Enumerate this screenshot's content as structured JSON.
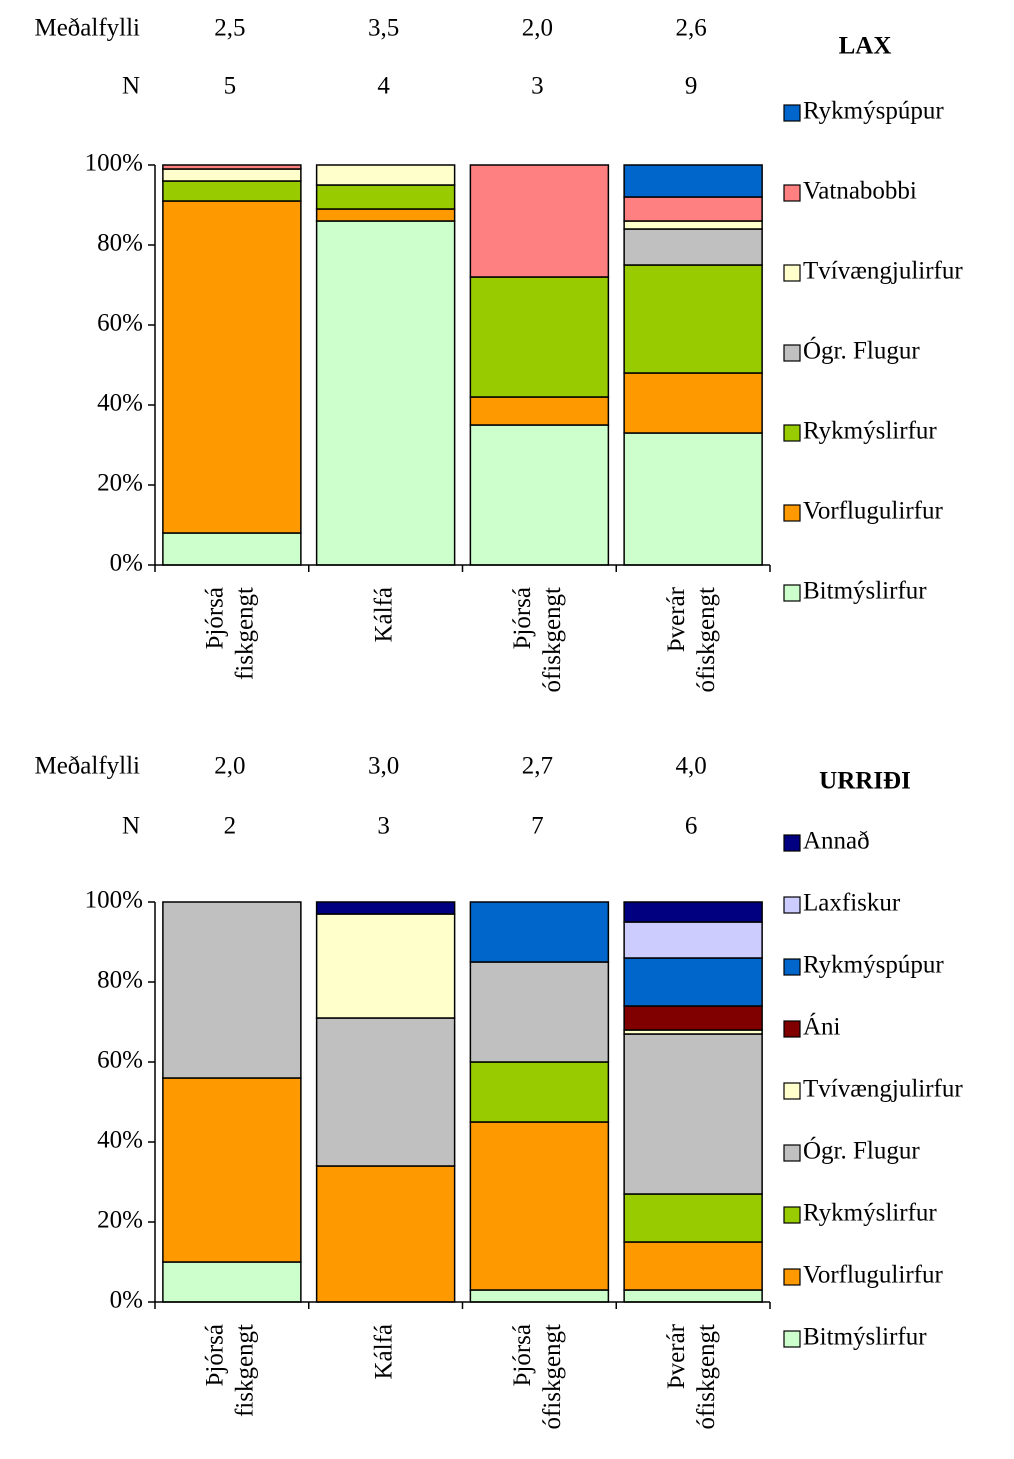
{
  "chart_data": [
    {
      "type": "stacked_bar",
      "title": "LAX",
      "header_rows": [
        {
          "label": "Meðalfylli",
          "values": [
            "2,5",
            "3,5",
            "2,0",
            "2,6"
          ]
        },
        {
          "label": "N",
          "values": [
            "5",
            "4",
            "3",
            "9"
          ]
        }
      ],
      "categories": [
        [
          "Þjórsá",
          "fiskgengt"
        ],
        [
          "Kálfá"
        ],
        [
          "Þjórsá",
          "ófiskgengt"
        ],
        [
          "Þverár",
          "ófiskgengt"
        ]
      ],
      "ylim": [
        0,
        100
      ],
      "yticks": [
        {
          "value": 0,
          "label": "0%"
        },
        {
          "value": 20,
          "label": "20%"
        },
        {
          "value": 40,
          "label": "40%"
        },
        {
          "value": 60,
          "label": "60%"
        },
        {
          "value": 80,
          "label": "80%"
        },
        {
          "value": 100,
          "label": "100%"
        }
      ],
      "series": [
        {
          "name": "Bitmýslirfur",
          "color": "#ccffcc",
          "values": [
            8,
            86,
            35,
            33
          ]
        },
        {
          "name": "Vorflugulirfur",
          "color": "#ff9900",
          "values": [
            83,
            3,
            7,
            15
          ]
        },
        {
          "name": "Rykmýslirfur",
          "color": "#99cc00",
          "values": [
            5,
            6,
            30,
            27
          ]
        },
        {
          "name": "Ógr. Flugur",
          "color": "#c0c0c0",
          "values": [
            0,
            0,
            0,
            9
          ]
        },
        {
          "name": "Tvívængjulirfur",
          "color": "#ffffcc",
          "values": [
            3,
            5,
            0,
            2
          ]
        },
        {
          "name": "Vatnabobbi",
          "color": "#ff8080",
          "values": [
            1,
            0,
            28,
            6
          ]
        },
        {
          "name": "Rykmýspúpur",
          "color": "#0066cc",
          "values": [
            0,
            0,
            0,
            8
          ]
        }
      ]
    },
    {
      "type": "stacked_bar",
      "title": "URRIÐI",
      "header_rows": [
        {
          "label": "Meðalfylli",
          "values": [
            "2,0",
            "3,0",
            "2,7",
            "4,0"
          ]
        },
        {
          "label": "N",
          "values": [
            "2",
            "3",
            "7",
            "6"
          ]
        }
      ],
      "categories": [
        [
          "Þjórsá",
          "fiskgengt"
        ],
        [
          "Kálfá"
        ],
        [
          "Þjórsá",
          "ófiskgengt"
        ],
        [
          "Þverár",
          "ófiskgengt"
        ]
      ],
      "ylim": [
        0,
        100
      ],
      "yticks": [
        {
          "value": 0,
          "label": "0%"
        },
        {
          "value": 20,
          "label": "20%"
        },
        {
          "value": 40,
          "label": "40%"
        },
        {
          "value": 60,
          "label": "60%"
        },
        {
          "value": 80,
          "label": "80%"
        },
        {
          "value": 100,
          "label": "100%"
        }
      ],
      "series": [
        {
          "name": "Bitmýslirfur",
          "color": "#ccffcc",
          "values": [
            10,
            0,
            3,
            3
          ]
        },
        {
          "name": "Vorflugulirfur",
          "color": "#ff9900",
          "values": [
            46,
            34,
            42,
            12
          ]
        },
        {
          "name": "Rykmýslirfur",
          "color": "#99cc00",
          "values": [
            0,
            0,
            15,
            12
          ]
        },
        {
          "name": "Ógr. Flugur",
          "color": "#c0c0c0",
          "values": [
            44,
            37,
            25,
            40
          ]
        },
        {
          "name": "Tvívængjulirfur",
          "color": "#ffffcc",
          "values": [
            0,
            26,
            0,
            1
          ]
        },
        {
          "name": "Áni",
          "color": "#800000",
          "values": [
            0,
            0,
            0,
            6
          ]
        },
        {
          "name": "Rykmýspúpur",
          "color": "#0066cc",
          "values": [
            0,
            0,
            15,
            12
          ]
        },
        {
          "name": "Laxfiskur",
          "color": "#ccccff",
          "values": [
            0,
            0,
            0,
            9
          ]
        },
        {
          "name": "Annað",
          "color": "#000080",
          "values": [
            0,
            3,
            0,
            5
          ]
        }
      ]
    }
  ]
}
